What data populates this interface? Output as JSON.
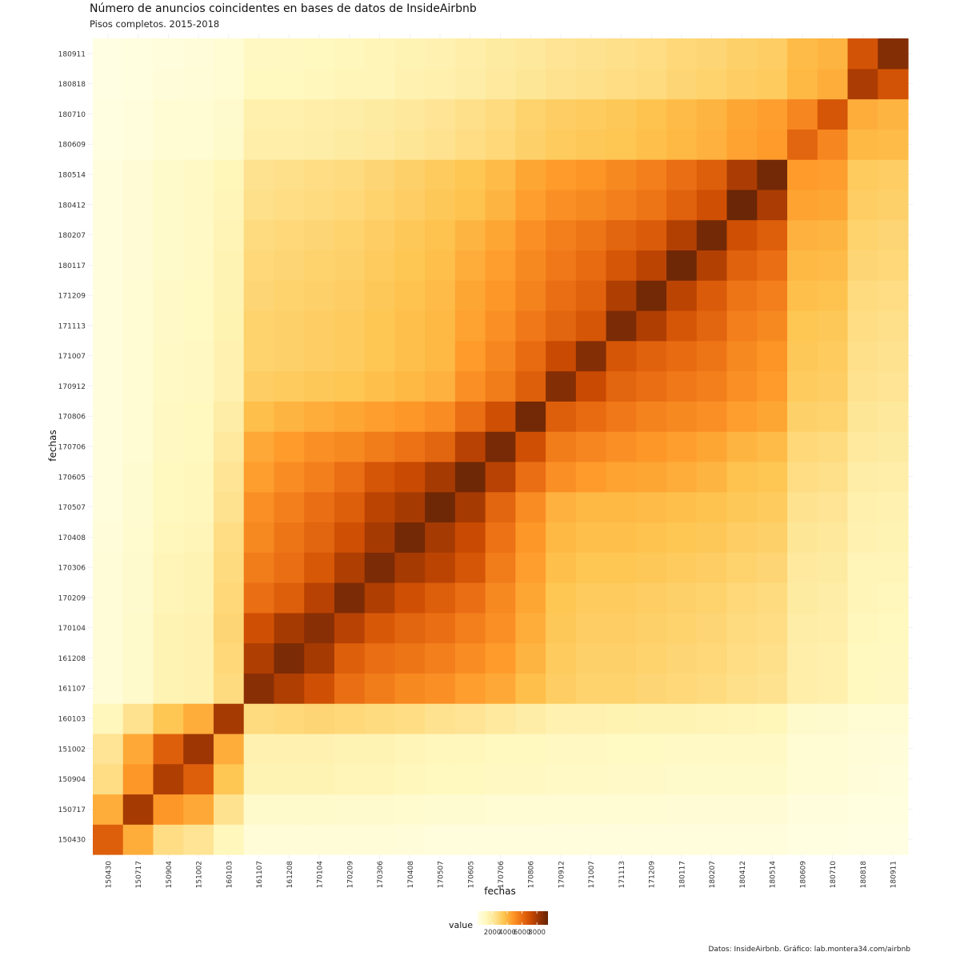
{
  "chart_data": {
    "type": "heatmap",
    "title": "Número de anuncios coincidentes en bases de datos de InsideAirbnb",
    "subtitle": "Pisos completos. 2015-2018",
    "caption": "Datos: InsideAirbnb. Gráfico: lab.montera34.com/airbnb",
    "xlabel": "fechas",
    "ylabel": "fechas",
    "categories": [
      "150430",
      "150717",
      "150904",
      "151002",
      "160103",
      "161107",
      "161208",
      "170104",
      "170209",
      "170306",
      "170408",
      "170507",
      "170605",
      "170706",
      "170806",
      "170912",
      "171007",
      "171113",
      "171209",
      "180117",
      "180207",
      "180412",
      "180514",
      "180609",
      "180710",
      "180818",
      "180911"
    ],
    "legend": {
      "title": "value",
      "ticks": [
        2000,
        4000,
        6000,
        8000
      ],
      "range": [
        0,
        9500
      ],
      "position": "bottom",
      "colors": [
        "#ffffe5",
        "#fff7bc",
        "#fee391",
        "#fec44f",
        "#fe9929",
        "#ec7014",
        "#cc4c02",
        "#993404",
        "#662506"
      ]
    },
    "grid": true,
    "values": [
      [
        6500,
        4200,
        2600,
        2300,
        1200,
        400,
        400,
        400,
        400,
        400,
        350,
        300,
        300,
        300,
        300,
        250,
        250,
        250,
        250,
        250,
        250,
        250,
        250,
        150,
        150,
        100,
        100
      ],
      [
        4200,
        8000,
        4800,
        4300,
        2400,
        750,
        750,
        750,
        700,
        700,
        650,
        600,
        600,
        550,
        550,
        500,
        500,
        500,
        500,
        450,
        450,
        450,
        450,
        300,
        300,
        200,
        200
      ],
      [
        2600,
        4800,
        7800,
        6500,
        3500,
        1400,
        1400,
        1400,
        1300,
        1300,
        1200,
        1100,
        1100,
        1000,
        1000,
        900,
        900,
        850,
        850,
        800,
        800,
        800,
        800,
        500,
        500,
        350,
        300
      ],
      [
        2300,
        4300,
        6500,
        8200,
        4200,
        1500,
        1500,
        1500,
        1400,
        1400,
        1300,
        1200,
        1200,
        1100,
        1100,
        1000,
        1000,
        950,
        950,
        900,
        900,
        900,
        900,
        550,
        550,
        400,
        350
      ],
      [
        1200,
        2400,
        3500,
        4200,
        8000,
        2700,
        2800,
        2900,
        2800,
        2700,
        2600,
        2400,
        2300,
        2000,
        1800,
        1500,
        1500,
        1450,
        1400,
        1400,
        1350,
        1300,
        1250,
        750,
        700,
        500,
        500
      ],
      [
        400,
        750,
        1400,
        1500,
        2700,
        8700,
        7800,
        7000,
        6000,
        5600,
        5200,
        5000,
        4600,
        4300,
        3700,
        3200,
        3000,
        3000,
        2900,
        2800,
        2700,
        2500,
        2400,
        1700,
        1600,
        1100,
        1000
      ],
      [
        400,
        750,
        1400,
        1500,
        2800,
        7800,
        9000,
        8000,
        6500,
        6000,
        5800,
        5500,
        5100,
        4700,
        4000,
        3300,
        3100,
        3100,
        3000,
        2900,
        2800,
        2600,
        2500,
        1700,
        1600,
        1100,
        1050
      ],
      [
        400,
        750,
        1400,
        1500,
        2900,
        7000,
        8000,
        8700,
        7600,
        6700,
        6300,
        6000,
        5500,
        5000,
        4200,
        3400,
        3200,
        3200,
        3100,
        3000,
        2900,
        2700,
        2600,
        1800,
        1700,
        1200,
        1100
      ],
      [
        400,
        700,
        1300,
        1400,
        2800,
        6000,
        6500,
        7600,
        9000,
        7800,
        7000,
        6500,
        6000,
        5200,
        4400,
        3500,
        3300,
        3300,
        3200,
        3100,
        3000,
        2800,
        2700,
        1900,
        1800,
        1300,
        1200
      ],
      [
        400,
        700,
        1300,
        1400,
        2700,
        5600,
        6000,
        6700,
        7800,
        9000,
        8000,
        7500,
        6800,
        5600,
        4600,
        3700,
        3500,
        3500,
        3400,
        3300,
        3200,
        3000,
        2900,
        2000,
        1900,
        1300,
        1300
      ],
      [
        350,
        650,
        1200,
        1300,
        2600,
        5200,
        5800,
        6300,
        7000,
        8000,
        9200,
        8000,
        7200,
        5900,
        4800,
        3900,
        3700,
        3700,
        3600,
        3500,
        3400,
        3200,
        3100,
        2200,
        2100,
        1500,
        1400
      ],
      [
        300,
        600,
        1100,
        1200,
        2400,
        5000,
        5500,
        6000,
        6500,
        7500,
        8000,
        9300,
        8000,
        6300,
        5100,
        4100,
        3900,
        3900,
        3800,
        3700,
        3600,
        3400,
        3300,
        2400,
        2300,
        1600,
        1500
      ],
      [
        300,
        600,
        1100,
        1200,
        2300,
        4600,
        5100,
        5500,
        6000,
        6800,
        7200,
        8000,
        9300,
        7600,
        6000,
        5000,
        4700,
        4500,
        4400,
        4200,
        4000,
        3600,
        3500,
        2600,
        2500,
        1800,
        1700
      ],
      [
        300,
        550,
        1000,
        1100,
        2000,
        4300,
        4700,
        5000,
        5200,
        5600,
        5900,
        6300,
        7600,
        9100,
        7000,
        5600,
        5300,
        5000,
        4800,
        4600,
        4400,
        4000,
        3800,
        2800,
        2700,
        2000,
        1900
      ],
      [
        300,
        550,
        1000,
        1100,
        1800,
        3700,
        4000,
        4200,
        4400,
        4600,
        4800,
        5100,
        6000,
        7000,
        9200,
        6500,
        6100,
        5700,
        5400,
        5200,
        5000,
        4600,
        4400,
        3100,
        3000,
        2200,
        2100
      ],
      [
        250,
        500,
        900,
        1000,
        1500,
        3200,
        3300,
        3400,
        3500,
        3700,
        3900,
        4100,
        5000,
        5600,
        6500,
        8800,
        7200,
        6300,
        6000,
        5700,
        5500,
        5000,
        4700,
        3300,
        3200,
        2400,
        2300
      ],
      [
        250,
        500,
        900,
        1000,
        1500,
        3000,
        3100,
        3200,
        3300,
        3500,
        3700,
        3900,
        4700,
        5300,
        6100,
        7200,
        8800,
        6800,
        6400,
        6100,
        5800,
        5200,
        4900,
        3400,
        3300,
        2500,
        2400
      ],
      [
        250,
        500,
        850,
        950,
        1450,
        3000,
        3100,
        3200,
        3300,
        3500,
        3700,
        3900,
        4500,
        5000,
        5700,
        6300,
        6800,
        9000,
        7800,
        6800,
        6300,
        5500,
        5200,
        3500,
        3400,
        2600,
        2500
      ],
      [
        250,
        500,
        850,
        950,
        1400,
        2900,
        3000,
        3100,
        3200,
        3400,
        3600,
        3800,
        4400,
        4800,
        5400,
        6000,
        6400,
        7800,
        9200,
        7500,
        6600,
        5800,
        5500,
        3700,
        3600,
        2700,
        2600
      ],
      [
        250,
        450,
        800,
        900,
        1400,
        2800,
        2900,
        3000,
        3100,
        3300,
        3500,
        3700,
        4200,
        4600,
        5200,
        5700,
        6100,
        6800,
        7500,
        9300,
        7700,
        6400,
        6000,
        3900,
        3800,
        2900,
        2800
      ],
      [
        250,
        450,
        800,
        900,
        1350,
        2700,
        2800,
        2900,
        3000,
        3200,
        3400,
        3600,
        4000,
        4400,
        5000,
        5500,
        5800,
        6300,
        6600,
        7700,
        9200,
        7000,
        6500,
        4100,
        4000,
        3000,
        2900
      ],
      [
        250,
        450,
        800,
        900,
        1300,
        2500,
        2600,
        2700,
        2800,
        3000,
        3200,
        3400,
        3600,
        4000,
        4600,
        5000,
        5200,
        5500,
        5800,
        6400,
        7000,
        9400,
        7900,
        4500,
        4400,
        3200,
        3100
      ],
      [
        250,
        450,
        800,
        900,
        1250,
        2400,
        2500,
        2600,
        2700,
        2900,
        3100,
        3300,
        3500,
        3800,
        4400,
        4700,
        4900,
        5200,
        5500,
        6000,
        6500,
        7900,
        9200,
        4700,
        4600,
        3300,
        3200
      ],
      [
        150,
        300,
        500,
        550,
        750,
        1700,
        1700,
        1800,
        1900,
        2000,
        2200,
        2400,
        2600,
        2800,
        3100,
        3300,
        3400,
        3500,
        3700,
        3900,
        4100,
        4500,
        4700,
        6300,
        5300,
        3900,
        3800
      ],
      [
        150,
        300,
        500,
        550,
        700,
        1600,
        1600,
        1700,
        1800,
        1900,
        2100,
        2300,
        2500,
        2700,
        3000,
        3200,
        3300,
        3400,
        3600,
        3800,
        4000,
        4400,
        4600,
        5300,
        6800,
        4200,
        4000
      ],
      [
        100,
        200,
        350,
        400,
        500,
        1100,
        1100,
        1200,
        1300,
        1300,
        1500,
        1600,
        1800,
        2000,
        2200,
        2400,
        2500,
        2600,
        2700,
        2900,
        3000,
        3200,
        3300,
        3900,
        4200,
        7900,
        6900
      ],
      [
        100,
        200,
        300,
        350,
        500,
        1000,
        1050,
        1100,
        1200,
        1300,
        1400,
        1500,
        1700,
        1900,
        2100,
        2300,
        2400,
        2500,
        2600,
        2800,
        2900,
        3100,
        3200,
        3800,
        4000,
        6900,
        8800
      ]
    ]
  }
}
